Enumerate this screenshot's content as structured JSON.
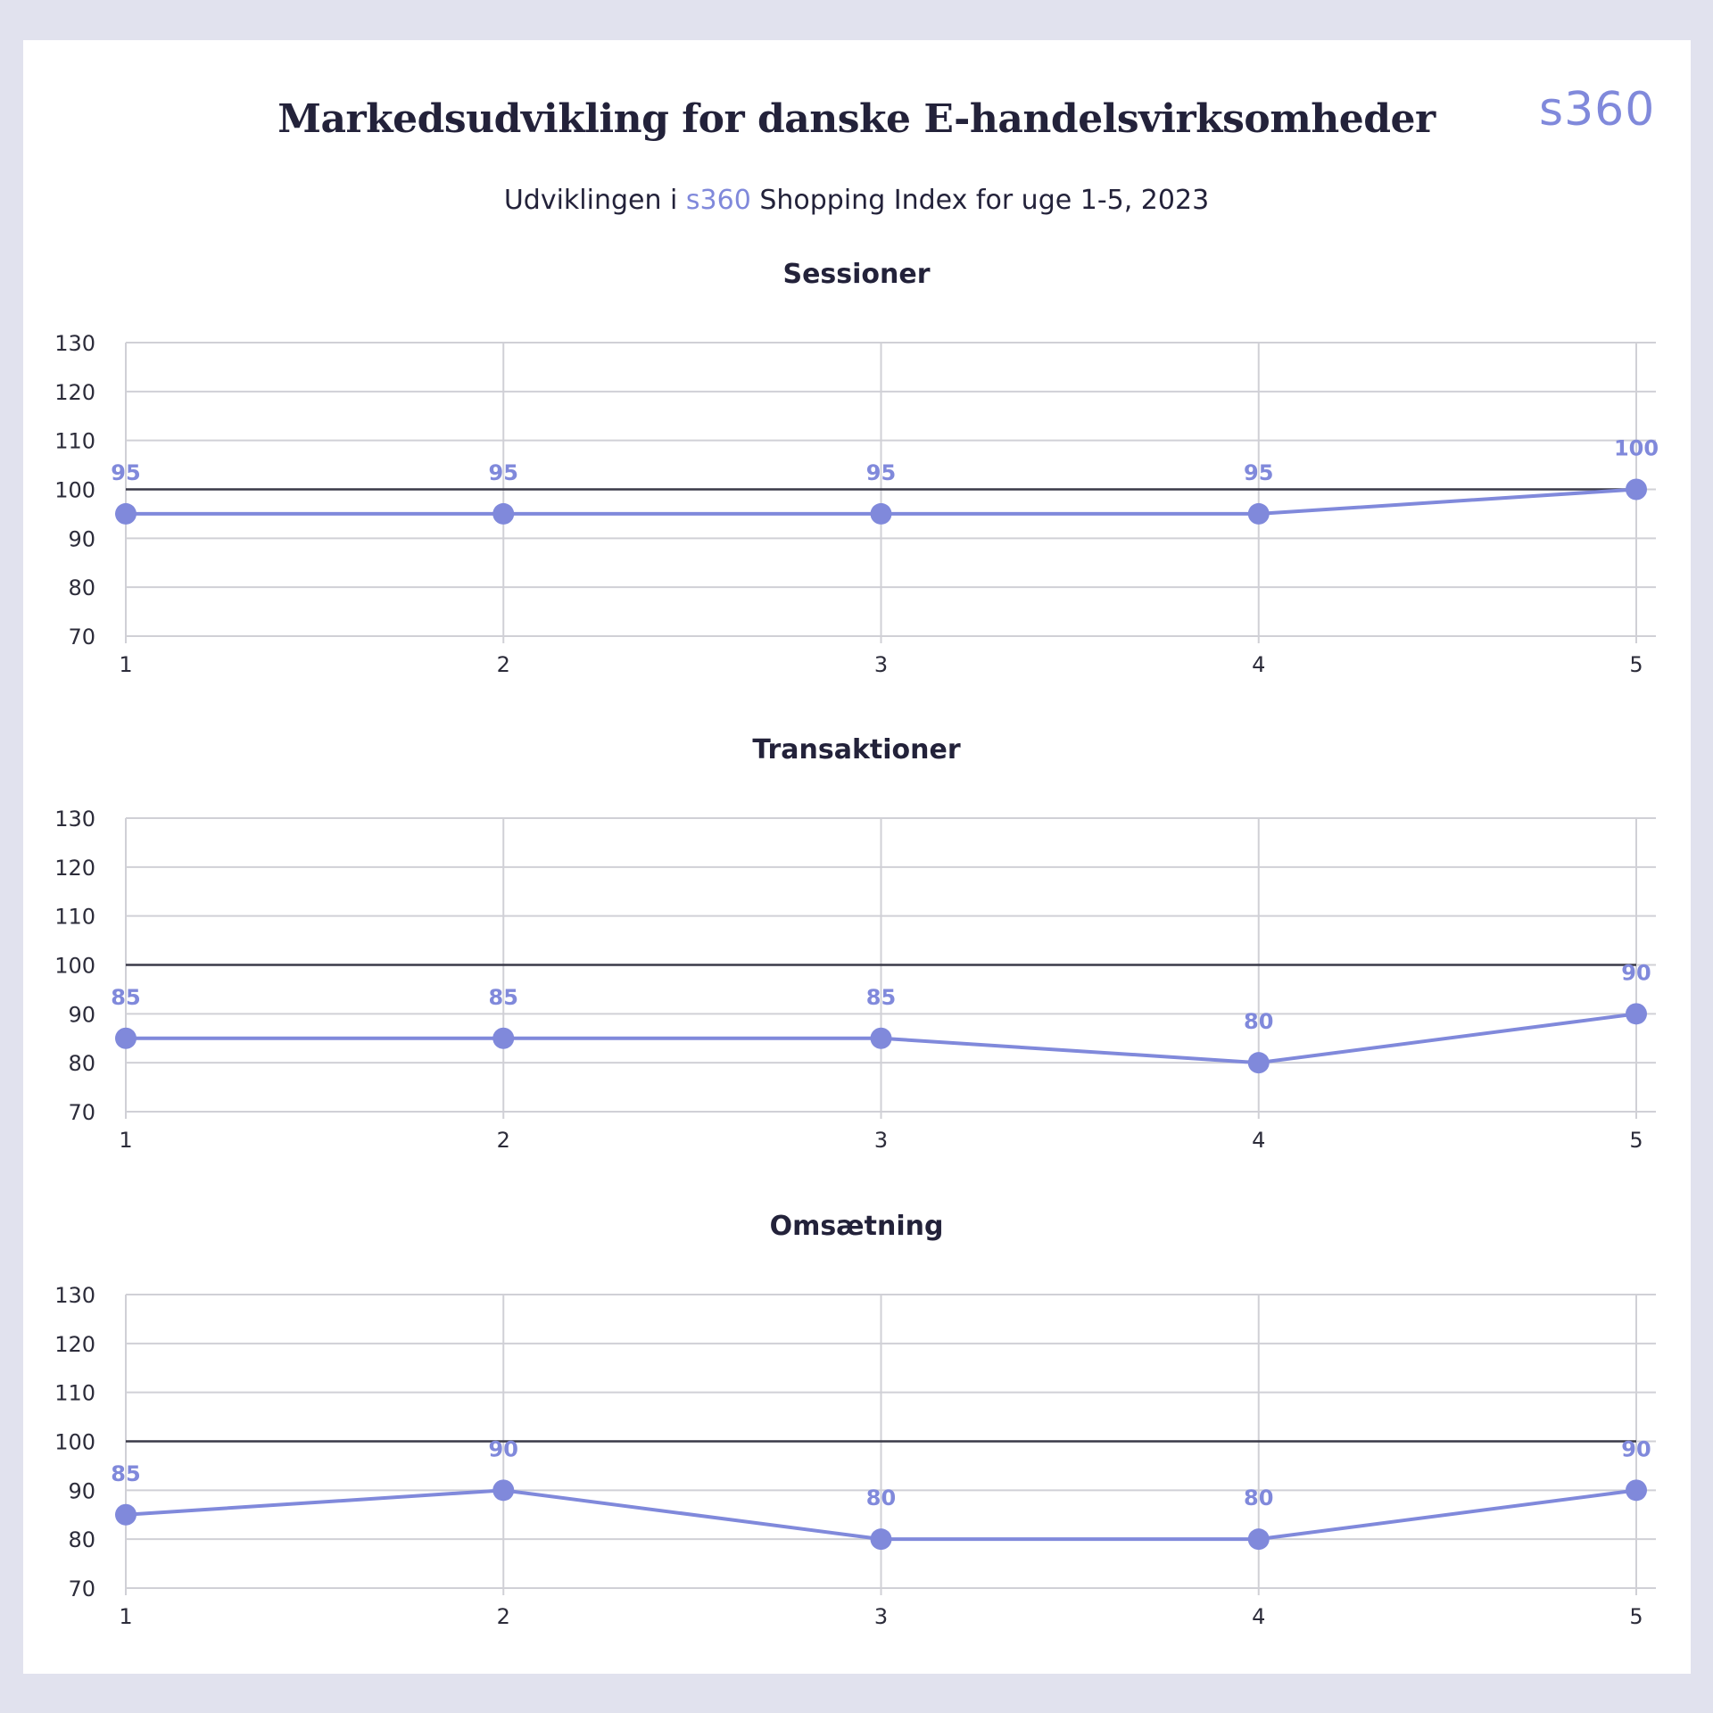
{
  "title": "Markedsudvikling for danske E-handelsvirksomheder",
  "subtitle": {
    "before": "Udviklingen i ",
    "brand": "s360",
    "after": " Shopping Index for uge 1-5, 2023"
  },
  "logo": "s360",
  "colors": {
    "background": "#e1e2ee",
    "card": "#ffffff",
    "accent": "#8089db",
    "text": "#23223a",
    "reference_line": "#3a3a48",
    "grid": "#d0d0d6"
  },
  "chart_data": [
    {
      "type": "line",
      "title": "Sessioner",
      "x": [
        "1",
        "2",
        "3",
        "4",
        "5"
      ],
      "values": [
        95,
        95,
        95,
        95,
        100
      ],
      "yticks": [
        "70",
        "80",
        "90",
        "100",
        "110",
        "120",
        "130"
      ],
      "ylim": [
        70,
        130
      ],
      "reference_line": 100,
      "data_labels": [
        "95",
        "95",
        "95",
        "95",
        "100"
      ],
      "grid": true
    },
    {
      "type": "line",
      "title": "Transaktioner",
      "x": [
        "1",
        "2",
        "3",
        "4",
        "5"
      ],
      "values": [
        85,
        85,
        85,
        80,
        90
      ],
      "yticks": [
        "70",
        "80",
        "90",
        "100",
        "110",
        "120",
        "130"
      ],
      "ylim": [
        70,
        130
      ],
      "reference_line": 100,
      "data_labels": [
        "85",
        "85",
        "85",
        "80",
        "90"
      ],
      "grid": true
    },
    {
      "type": "line",
      "title": "Omsætning",
      "x": [
        "1",
        "2",
        "3",
        "4",
        "5"
      ],
      "values": [
        85,
        90,
        80,
        80,
        90
      ],
      "yticks": [
        "70",
        "80",
        "90",
        "100",
        "110",
        "120",
        "130"
      ],
      "ylim": [
        70,
        130
      ],
      "reference_line": 100,
      "data_labels": [
        "85",
        "90",
        "80",
        "80",
        "90"
      ],
      "grid": true
    }
  ]
}
